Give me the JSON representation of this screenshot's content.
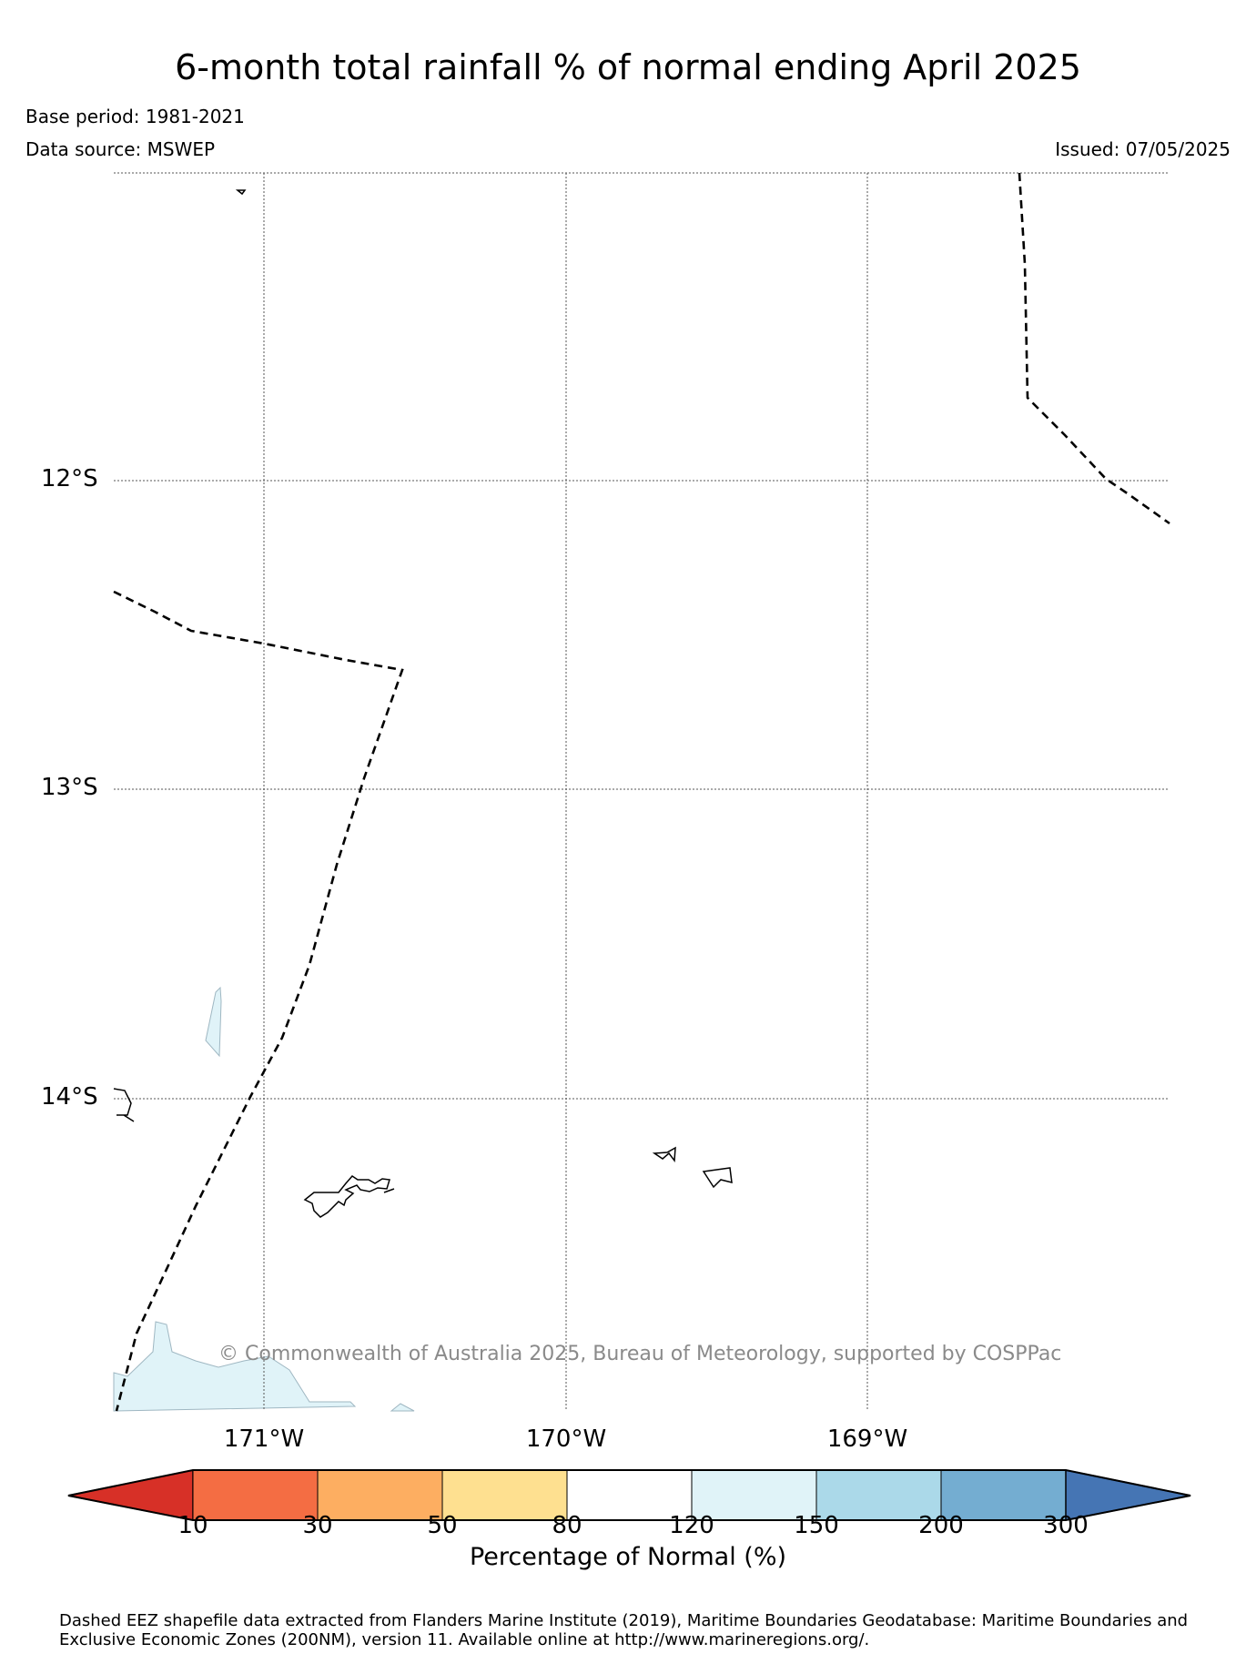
{
  "title": "6-month total rainfall % of normal ending April 2025",
  "base_period": "Base period: 1981-2021",
  "data_source": "Data source: MSWEP",
  "issued": "Issued: 07/05/2025",
  "map": {
    "lat_labels": [
      "12°S",
      "13°S",
      "14°S"
    ],
    "lon_labels": [
      "171°W",
      "170°W",
      "169°W"
    ],
    "land_outline_color": "#000000",
    "ocean_color": "#ffffff",
    "eez_boundary_style": "dashed"
  },
  "copyright": "© Commonwealth of Australia 2025, Bureau of Meteorology, supported by COSPPac",
  "colorbar": {
    "label": "Percentage of Normal (%)",
    "ticks": [
      "10",
      "30",
      "50",
      "80",
      "120",
      "150",
      "200",
      "300"
    ],
    "colors": [
      "#d73027",
      "#f46d43",
      "#fdae61",
      "#fee090",
      "#ffffff",
      "#e0f3f8",
      "#abd9e9",
      "#74add1",
      "#4575b4"
    ]
  },
  "footnote": "Dashed EEZ shapefile data extracted from Flanders Marine Institute (2019), Maritime Boundaries Geodatabase: Maritime Boundaries and Exclusive Economic Zones (200NM), version 11. Available online at http://www.marineregions.org/."
}
